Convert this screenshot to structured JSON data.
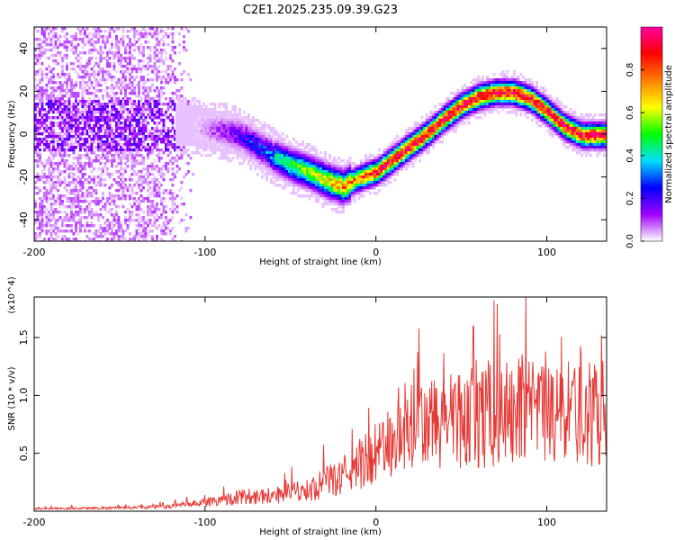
{
  "title": "C2E1.2025.235.09.39.G23",
  "chart_data": [
    {
      "type": "heatmap",
      "xlabel": "Height of straight line (km)",
      "ylabel": "Frequency (Hz)",
      "xlim": [
        -200,
        135
      ],
      "ylim": [
        -50,
        50
      ],
      "x_ticks": [
        "-200",
        "-100",
        "0",
        "100"
      ],
      "y_ticks": [
        "40",
        "20",
        "0",
        "-20",
        "-40"
      ],
      "colorbar": {
        "label": "Normalized spectral amplitude",
        "range": [
          0,
          1
        ],
        "ticks": [
          "0.0",
          "0.2",
          "0.4",
          "0.6",
          "0.8"
        ],
        "colors": [
          "#ffffff",
          "#a000ff",
          "#0000ff",
          "#00e0ff",
          "#00ff00",
          "#ffff00",
          "#ff8000",
          "#ff0000",
          "#ff00a0"
        ]
      },
      "ridge": {
        "x": [
          -110,
          -100,
          -90,
          -80,
          -70,
          -60,
          -50,
          -40,
          -30,
          -20,
          -10,
          0,
          10,
          20,
          30,
          40,
          50,
          60,
          70,
          80,
          90,
          100,
          110,
          120,
          130
        ],
        "y": [
          5,
          3,
          2,
          0,
          -5,
          -10,
          -14,
          -17,
          -21,
          -24,
          -20,
          -17,
          -11,
          -5,
          1,
          8,
          14,
          18,
          20,
          20,
          17,
          11,
          4,
          0,
          0
        ]
      }
    },
    {
      "type": "line",
      "xlabel": "Height of straight line (km)",
      "ylabel": "SNR (10 * v/v)",
      "ylabel_scale": "(x10^4)",
      "xlim": [
        -200,
        135
      ],
      "ylim": [
        0,
        1.85
      ],
      "x_ticks": [
        "-200",
        "-100",
        "0",
        "100"
      ],
      "y_ticks": [
        "1.5",
        "1.0",
        "0.5"
      ],
      "color": "#e53935",
      "trend": {
        "x": [
          -200,
          -150,
          -120,
          -100,
          -80,
          -60,
          -40,
          -20,
          0,
          20,
          40,
          60,
          70,
          80,
          100,
          120,
          135
        ],
        "y": [
          0.02,
          0.03,
          0.04,
          0.08,
          0.12,
          0.14,
          0.18,
          0.3,
          0.5,
          0.7,
          0.78,
          0.82,
          0.82,
          0.85,
          0.82,
          0.85,
          0.85
        ]
      },
      "peaks": [
        {
          "x": 69,
          "y": 1.82
        },
        {
          "x": 71,
          "y": 1.79
        },
        {
          "x": 57,
          "y": 1.6
        },
        {
          "x": 132,
          "y": 1.52
        }
      ]
    }
  ]
}
